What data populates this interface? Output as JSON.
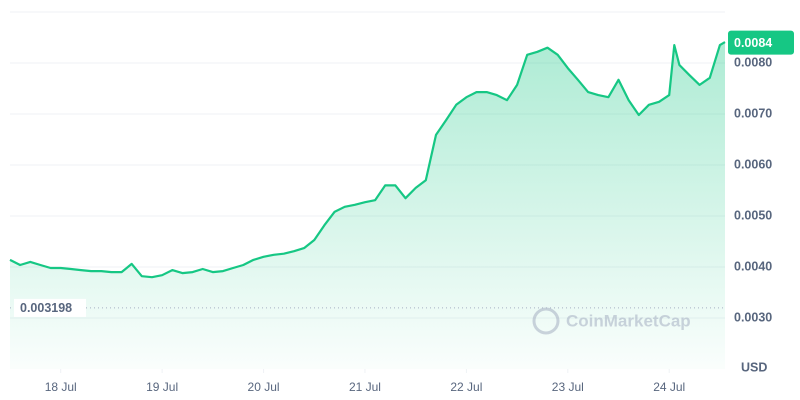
{
  "chart_data": {
    "type": "line",
    "x": [
      17.5,
      17.6,
      17.7,
      17.8,
      17.9,
      18.0,
      18.1,
      18.2,
      18.3,
      18.4,
      18.5,
      18.6,
      18.7,
      18.8,
      18.9,
      19.0,
      19.1,
      19.2,
      19.3,
      19.4,
      19.5,
      19.6,
      19.7,
      19.8,
      19.9,
      20.0,
      20.1,
      20.2,
      20.3,
      20.4,
      20.5,
      20.6,
      20.7,
      20.8,
      20.9,
      21.0,
      21.1,
      21.2,
      21.3,
      21.4,
      21.5,
      21.6,
      21.7,
      21.8,
      21.9,
      22.0,
      22.1,
      22.2,
      22.3,
      22.4,
      22.5,
      22.6,
      22.7,
      22.8,
      22.9,
      23.0,
      23.1,
      23.2,
      23.3,
      23.4,
      23.5,
      23.6,
      23.7,
      23.8,
      23.9,
      24.0,
      24.05,
      24.1,
      24.2,
      24.3,
      24.4,
      24.5,
      24.55
    ],
    "values": [
      0.00414,
      0.00404,
      0.0041,
      0.00404,
      0.00398,
      0.00398,
      0.00396,
      0.00394,
      0.00392,
      0.00392,
      0.0039,
      0.0039,
      0.00406,
      0.00382,
      0.0038,
      0.00384,
      0.00394,
      0.00388,
      0.0039,
      0.00396,
      0.0039,
      0.00392,
      0.00398,
      0.00404,
      0.00414,
      0.0042,
      0.00424,
      0.00426,
      0.00431,
      0.00437,
      0.00453,
      0.00482,
      0.00508,
      0.00518,
      0.00522,
      0.00527,
      0.00531,
      0.0056,
      0.0056,
      0.00535,
      0.00555,
      0.0057,
      0.00659,
      0.00688,
      0.00718,
      0.00733,
      0.00743,
      0.00743,
      0.00737,
      0.00727,
      0.00757,
      0.00816,
      0.00822,
      0.0083,
      0.00816,
      0.0079,
      0.00767,
      0.00743,
      0.00737,
      0.00733,
      0.00767,
      0.00727,
      0.00698,
      0.00718,
      0.00724,
      0.00737,
      0.00835,
      0.00796,
      0.00776,
      0.00757,
      0.00771,
      0.00835,
      0.00841
    ],
    "color": "#16c784",
    "xlim": [
      17.5,
      24.55
    ],
    "ylim": [
      0.002,
      0.009
    ],
    "xticks": [
      {
        "value": 18,
        "label": "18 Jul"
      },
      {
        "value": 19,
        "label": "19 Jul"
      },
      {
        "value": 20,
        "label": "20 Jul"
      },
      {
        "value": 21,
        "label": "21 Jul"
      },
      {
        "value": 22,
        "label": "22 Jul"
      },
      {
        "value": 23,
        "label": "23 Jul"
      },
      {
        "value": 24,
        "label": "24 Jul"
      }
    ],
    "yticks": [
      {
        "value": 0.003,
        "label": "0.0030"
      },
      {
        "value": 0.004,
        "label": "0.0040"
      },
      {
        "value": 0.005,
        "label": "0.0050"
      },
      {
        "value": 0.006,
        "label": "0.0060"
      },
      {
        "value": 0.007,
        "label": "0.0070"
      },
      {
        "value": 0.008,
        "label": "0.0080"
      }
    ],
    "grid": true,
    "current_price": 0.0084,
    "baseline": 0.003198,
    "currency": "USD",
    "watermark": "CoinMarketCap"
  }
}
